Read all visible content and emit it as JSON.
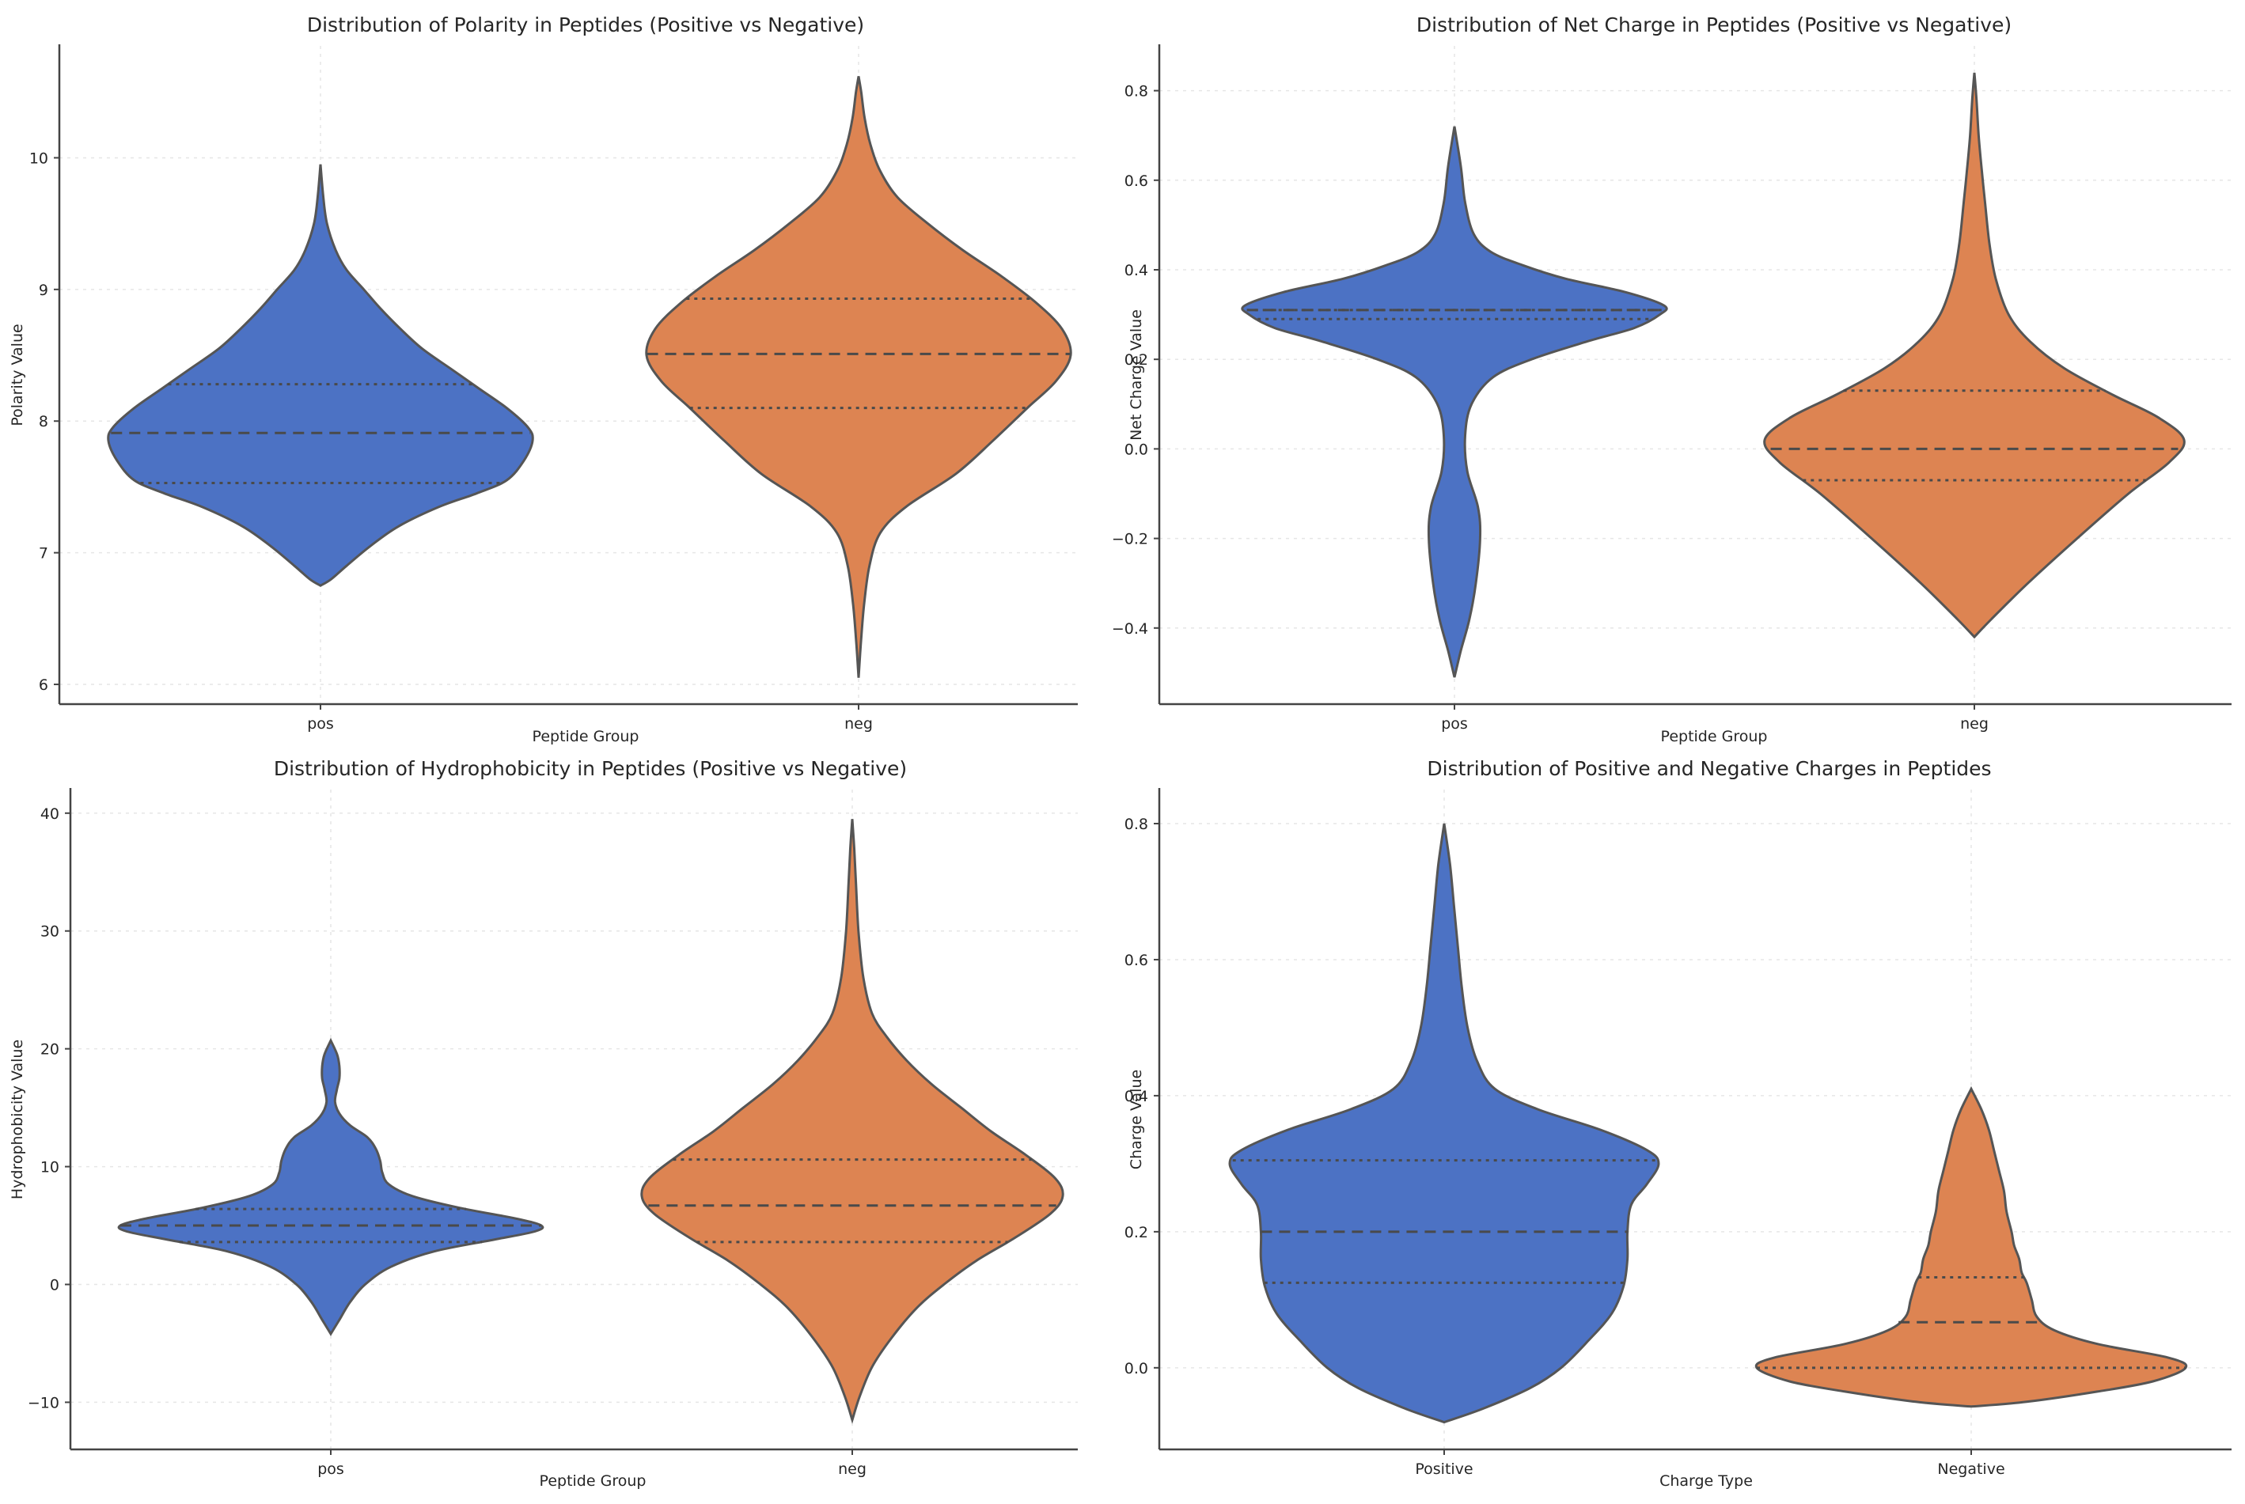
{
  "colors": {
    "blue": "#4c72c4",
    "orange": "#dd8452"
  },
  "chart_data": [
    {
      "type": "violin",
      "title": "Distribution of Polarity in Peptides (Positive vs Negative)",
      "xlabel": "Peptide Group",
      "ylabel": "Polarity Value",
      "ylim": [
        5.85,
        10.85
      ],
      "yticks": [
        6,
        7,
        8,
        9,
        10
      ],
      "yticklabels": [
        "6",
        "7",
        "8",
        "9",
        "10"
      ],
      "categories": [
        "pos",
        "neg"
      ],
      "grid": true,
      "series": [
        {
          "name": "pos",
          "color": "#4c72c4",
          "median": 7.91,
          "q1": 7.53,
          "q3": 8.28,
          "profile": [
            [
              6.75,
              0.0
            ],
            [
              6.8,
              0.05
            ],
            [
              6.9,
              0.12
            ],
            [
              7.05,
              0.23
            ],
            [
              7.2,
              0.36
            ],
            [
              7.35,
              0.55
            ],
            [
              7.45,
              0.72
            ],
            [
              7.55,
              0.86
            ],
            [
              7.7,
              0.94
            ],
            [
              7.85,
              0.98
            ],
            [
              7.95,
              0.96
            ],
            [
              8.1,
              0.86
            ],
            [
              8.25,
              0.73
            ],
            [
              8.4,
              0.6
            ],
            [
              8.55,
              0.47
            ],
            [
              8.7,
              0.37
            ],
            [
              8.85,
              0.28
            ],
            [
              9.0,
              0.2
            ],
            [
              9.15,
              0.12
            ],
            [
              9.3,
              0.07
            ],
            [
              9.5,
              0.03
            ],
            [
              9.7,
              0.013
            ],
            [
              9.95,
              0.0
            ]
          ]
        },
        {
          "name": "neg",
          "color": "#dd8452",
          "median": 8.51,
          "q1": 8.1,
          "q3": 8.93,
          "profile": [
            [
              6.05,
              0.0
            ],
            [
              6.3,
              0.01
            ],
            [
              6.6,
              0.025
            ],
            [
              6.9,
              0.05
            ],
            [
              7.15,
              0.1
            ],
            [
              7.35,
              0.22
            ],
            [
              7.6,
              0.45
            ],
            [
              7.85,
              0.62
            ],
            [
              8.1,
              0.78
            ],
            [
              8.3,
              0.91
            ],
            [
              8.5,
              0.98
            ],
            [
              8.7,
              0.94
            ],
            [
              8.9,
              0.82
            ],
            [
              9.1,
              0.66
            ],
            [
              9.3,
              0.48
            ],
            [
              9.5,
              0.32
            ],
            [
              9.7,
              0.18
            ],
            [
              9.9,
              0.1
            ],
            [
              10.1,
              0.055
            ],
            [
              10.3,
              0.028
            ],
            [
              10.5,
              0.012
            ],
            [
              10.62,
              0.0
            ]
          ]
        }
      ]
    },
    {
      "type": "violin",
      "title": "Distribution of Net Charge in Peptides (Positive vs Negative)",
      "xlabel": "Peptide Group",
      "ylabel": "Net Charge Value",
      "ylim": [
        -0.57,
        0.9
      ],
      "yticks": [
        -0.4,
        -0.2,
        0.0,
        0.2,
        0.4,
        0.6,
        0.8
      ],
      "yticklabels": [
        "−0.4",
        "−0.2",
        "0.0",
        "0.2",
        "0.4",
        "0.6",
        "0.8"
      ],
      "categories": [
        "pos",
        "neg"
      ],
      "grid": true,
      "series": [
        {
          "name": "pos",
          "color": "#4c72c4",
          "median": 0.31,
          "q1": 0.29,
          "q3": 0.31,
          "profile": [
            [
              -0.51,
              0.0
            ],
            [
              -0.45,
              0.03
            ],
            [
              -0.38,
              0.07
            ],
            [
              -0.3,
              0.1
            ],
            [
              -0.2,
              0.12
            ],
            [
              -0.13,
              0.11
            ],
            [
              -0.05,
              0.06
            ],
            [
              0.03,
              0.05
            ],
            [
              0.1,
              0.08
            ],
            [
              0.16,
              0.18
            ],
            [
              0.2,
              0.36
            ],
            [
              0.24,
              0.62
            ],
            [
              0.27,
              0.84
            ],
            [
              0.3,
              0.96
            ],
            [
              0.32,
              0.98
            ],
            [
              0.35,
              0.8
            ],
            [
              0.38,
              0.52
            ],
            [
              0.41,
              0.32
            ],
            [
              0.44,
              0.17
            ],
            [
              0.48,
              0.09
            ],
            [
              0.55,
              0.05
            ],
            [
              0.63,
              0.03
            ],
            [
              0.72,
              0.0
            ]
          ]
        },
        {
          "name": "neg",
          "color": "#dd8452",
          "median": 0.0,
          "q1": -0.07,
          "q3": 0.13,
          "profile": [
            [
              -0.42,
              0.0
            ],
            [
              -0.38,
              0.08
            ],
            [
              -0.3,
              0.25
            ],
            [
              -0.2,
              0.48
            ],
            [
              -0.1,
              0.72
            ],
            [
              -0.03,
              0.91
            ],
            [
              0.02,
              0.98
            ],
            [
              0.07,
              0.86
            ],
            [
              0.12,
              0.65
            ],
            [
              0.18,
              0.42
            ],
            [
              0.24,
              0.26
            ],
            [
              0.3,
              0.16
            ],
            [
              0.38,
              0.1
            ],
            [
              0.46,
              0.07
            ],
            [
              0.55,
              0.05
            ],
            [
              0.62,
              0.035
            ],
            [
              0.7,
              0.02
            ],
            [
              0.78,
              0.01
            ],
            [
              0.84,
              0.0
            ]
          ]
        }
      ]
    },
    {
      "type": "violin",
      "title": "Distribution of Hydrophobicity in Peptides (Positive vs Negative)",
      "xlabel": "Peptide Group",
      "ylabel": "Hydrophobicity Value",
      "ylim": [
        -14,
        42
      ],
      "yticks": [
        -10,
        0,
        10,
        20,
        30,
        40
      ],
      "yticklabels": [
        "−10",
        "0",
        "10",
        "20",
        "30",
        "40"
      ],
      "categories": [
        "pos",
        "neg"
      ],
      "grid": true,
      "series": [
        {
          "name": "pos",
          "color": "#4c72c4",
          "median": 5.0,
          "q1": 3.6,
          "q3": 6.4,
          "profile": [
            [
              -4.2,
              0.0
            ],
            [
              -3.0,
              0.04
            ],
            [
              -1.5,
              0.09
            ],
            [
              0.0,
              0.16
            ],
            [
              1.5,
              0.28
            ],
            [
              2.8,
              0.48
            ],
            [
              3.8,
              0.76
            ],
            [
              4.5,
              0.95
            ],
            [
              5.0,
              0.98
            ],
            [
              5.6,
              0.86
            ],
            [
              6.5,
              0.6
            ],
            [
              7.5,
              0.38
            ],
            [
              8.5,
              0.27
            ],
            [
              9.5,
              0.24
            ],
            [
              10.5,
              0.23
            ],
            [
              11.5,
              0.21
            ],
            [
              12.5,
              0.17
            ],
            [
              13.5,
              0.09
            ],
            [
              14.5,
              0.04
            ],
            [
              15.5,
              0.02
            ],
            [
              16.5,
              0.028
            ],
            [
              17.5,
              0.04
            ],
            [
              18.5,
              0.04
            ],
            [
              19.5,
              0.03
            ],
            [
              20.7,
              0.0
            ]
          ]
        },
        {
          "name": "neg",
          "color": "#dd8452",
          "median": 6.7,
          "q1": 3.6,
          "q3": 10.6,
          "profile": [
            [
              -11.5,
              0.0
            ],
            [
              -9.5,
              0.03
            ],
            [
              -7.0,
              0.08
            ],
            [
              -4.5,
              0.16
            ],
            [
              -2.0,
              0.26
            ],
            [
              0.0,
              0.37
            ],
            [
              2.0,
              0.5
            ],
            [
              4.0,
              0.66
            ],
            [
              6.0,
              0.8
            ],
            [
              7.5,
              0.85
            ],
            [
              9.0,
              0.82
            ],
            [
              11.0,
              0.7
            ],
            [
              13.0,
              0.56
            ],
            [
              15.0,
              0.44
            ],
            [
              17.0,
              0.32
            ],
            [
              19.0,
              0.22
            ],
            [
              21.0,
              0.14
            ],
            [
              23.0,
              0.08
            ],
            [
              26.0,
              0.045
            ],
            [
              30.0,
              0.025
            ],
            [
              34.0,
              0.015
            ],
            [
              37.0,
              0.008
            ],
            [
              39.5,
              0.0
            ]
          ]
        }
      ]
    },
    {
      "type": "violin",
      "title": "Distribution of Positive and Negative Charges in Peptides",
      "xlabel": "Charge Type",
      "ylabel": "Charge Value",
      "ylim": [
        -0.12,
        0.85
      ],
      "yticks": [
        0.0,
        0.2,
        0.4,
        0.6,
        0.8
      ],
      "yticklabels": [
        "0.0",
        "0.2",
        "0.4",
        "0.6",
        "0.8"
      ],
      "categories": [
        "Positive",
        "Negative"
      ],
      "grid": true,
      "series": [
        {
          "name": "Positive",
          "color": "#4c72c4",
          "median": 0.2,
          "q1": 0.125,
          "q3": 0.305,
          "profile": [
            [
              -0.08,
              0.0
            ],
            [
              -0.06,
              0.1
            ],
            [
              -0.03,
              0.22
            ],
            [
              0.0,
              0.3
            ],
            [
              0.04,
              0.37
            ],
            [
              0.08,
              0.43
            ],
            [
              0.12,
              0.46
            ],
            [
              0.16,
              0.47
            ],
            [
              0.2,
              0.47
            ],
            [
              0.24,
              0.48
            ],
            [
              0.27,
              0.52
            ],
            [
              0.3,
              0.55
            ],
            [
              0.32,
              0.52
            ],
            [
              0.35,
              0.4
            ],
            [
              0.38,
              0.24
            ],
            [
              0.41,
              0.13
            ],
            [
              0.45,
              0.085
            ],
            [
              0.5,
              0.06
            ],
            [
              0.56,
              0.045
            ],
            [
              0.62,
              0.035
            ],
            [
              0.68,
              0.025
            ],
            [
              0.74,
              0.015
            ],
            [
              0.8,
              0.0
            ]
          ]
        },
        {
          "name": "Negative",
          "color": "#dd8452",
          "median": 0.067,
          "q1": 0.0,
          "q3": 0.133,
          "profile": [
            [
              -0.057,
              0.0
            ],
            [
              -0.05,
              0.22
            ],
            [
              -0.035,
              0.5
            ],
            [
              -0.02,
              0.72
            ],
            [
              0.0,
              0.85
            ],
            [
              0.015,
              0.78
            ],
            [
              0.035,
              0.5
            ],
            [
              0.055,
              0.33
            ],
            [
              0.075,
              0.26
            ],
            [
              0.1,
              0.24
            ],
            [
              0.125,
              0.22
            ],
            [
              0.14,
              0.2
            ],
            [
              0.16,
              0.19
            ],
            [
              0.18,
              0.17
            ],
            [
              0.2,
              0.16
            ],
            [
              0.23,
              0.14
            ],
            [
              0.26,
              0.13
            ],
            [
              0.29,
              0.11
            ],
            [
              0.32,
              0.09
            ],
            [
              0.35,
              0.07
            ],
            [
              0.38,
              0.04
            ],
            [
              0.41,
              0.0
            ]
          ]
        }
      ]
    }
  ]
}
